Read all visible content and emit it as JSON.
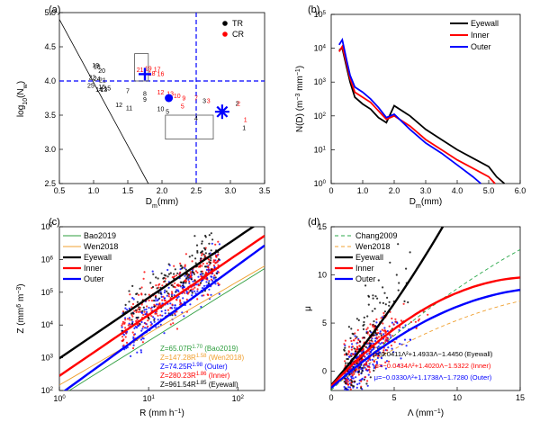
{
  "chart_data": [
    {
      "panel": "(a)",
      "type": "scatter",
      "xlabel": "D_m(mm)",
      "ylabel": "log_10(N_w)",
      "xlim": [
        0.5,
        3.5
      ],
      "ylim": [
        2.5,
        5.0
      ],
      "xticks": [
        "0.5",
        "1.0",
        "1.5",
        "2.0",
        "2.5",
        "3.0",
        "3.5"
      ],
      "yticks": [
        "2.5",
        "3.0",
        "3.5",
        "4.0",
        "4.5",
        "5.0"
      ],
      "legend": [
        {
          "name": "TR",
          "color": "#000000"
        },
        {
          "name": "CR",
          "color": "#ff0000"
        }
      ],
      "reference_lines": {
        "vertical_dashed_x": 2.5,
        "horizontal_dashed_y": 4.0,
        "diagonal_line": [
          [
            0.5,
            4.9
          ],
          [
            1.8,
            2.5
          ]
        ]
      },
      "boxes": [
        {
          "x": [
            1.6,
            1.8
          ],
          "y": [
            4.0,
            4.4
          ]
        },
        {
          "x": [
            2.05,
            2.75
          ],
          "y": [
            3.15,
            3.5
          ]
        }
      ],
      "markers": [
        {
          "shape": "plus",
          "color": "#0000ff",
          "x": 1.75,
          "y": 4.1
        },
        {
          "shape": "circle",
          "color": "#0000ff",
          "x": 2.1,
          "y": 3.75
        },
        {
          "shape": "asterisk",
          "color": "#0000ff",
          "x": 2.88,
          "y": 3.55
        }
      ],
      "tr_labels": [
        {
          "t": "19",
          "x": 1.03,
          "y": 4.2
        },
        {
          "t": "18",
          "x": 1.05,
          "y": 4.18
        },
        {
          "t": "20",
          "x": 1.12,
          "y": 4.12
        },
        {
          "t": "22",
          "x": 0.98,
          "y": 4.02
        },
        {
          "t": "24",
          "x": 1.05,
          "y": 4.0
        },
        {
          "t": "21",
          "x": 1.13,
          "y": 3.98
        },
        {
          "t": "25",
          "x": 0.96,
          "y": 3.9
        },
        {
          "t": "16",
          "x": 1.12,
          "y": 3.88
        },
        {
          "t": "15",
          "x": 1.2,
          "y": 3.86
        },
        {
          "t": "14",
          "x": 1.08,
          "y": 3.84
        },
        {
          "t": "13",
          "x": 1.15,
          "y": 3.84
        },
        {
          "t": "7",
          "x": 1.5,
          "y": 3.82
        },
        {
          "t": "8",
          "x": 1.75,
          "y": 3.78
        },
        {
          "t": "9",
          "x": 1.75,
          "y": 3.7
        },
        {
          "t": "12",
          "x": 1.37,
          "y": 3.62
        },
        {
          "t": "11",
          "x": 1.52,
          "y": 3.57
        },
        {
          "t": "10",
          "x": 1.98,
          "y": 3.56
        },
        {
          "t": "5",
          "x": 2.08,
          "y": 3.52
        },
        {
          "t": "3",
          "x": 2.62,
          "y": 3.68
        },
        {
          "t": "2",
          "x": 3.1,
          "y": 3.64
        },
        {
          "t": "4",
          "x": 2.5,
          "y": 3.42
        },
        {
          "t": "1",
          "x": 3.2,
          "y": 3.28
        }
      ],
      "cr_labels": [
        {
          "t": "21",
          "x": 1.68,
          "y": 4.13
        },
        {
          "t": "19",
          "x": 1.8,
          "y": 4.15
        },
        {
          "t": "17",
          "x": 1.93,
          "y": 4.14
        },
        {
          "t": "18",
          "x": 1.85,
          "y": 4.08
        },
        {
          "t": "16",
          "x": 1.98,
          "y": 4.07
        },
        {
          "t": "12",
          "x": 1.98,
          "y": 3.8
        },
        {
          "t": "13",
          "x": 2.12,
          "y": 3.78
        },
        {
          "t": "10",
          "x": 2.22,
          "y": 3.75
        },
        {
          "t": "9",
          "x": 2.32,
          "y": 3.72
        },
        {
          "t": "5",
          "x": 2.3,
          "y": 3.6
        },
        {
          "t": "7",
          "x": 2.5,
          "y": 3.72
        },
        {
          "t": "3",
          "x": 2.68,
          "y": 3.68
        },
        {
          "t": "2",
          "x": 3.12,
          "y": 3.64
        },
        {
          "t": "1",
          "x": 3.22,
          "y": 3.4
        }
      ]
    },
    {
      "panel": "(b)",
      "type": "line",
      "xlabel": "D_m(mm)",
      "ylabel": "N(D) (m^-3 mm^-1)",
      "xlim": [
        0,
        6
      ],
      "ylim_log10": [
        0,
        5
      ],
      "xticks": [
        "0",
        "1.0",
        "2.0",
        "3.0",
        "4.0",
        "5.0",
        "6.0"
      ],
      "series": [
        {
          "name": "Eyewall",
          "color": "#000000",
          "x": [
            0.25,
            0.35,
            0.5,
            0.6,
            0.75,
            1.0,
            1.25,
            1.5,
            1.75,
            2.0,
            2.5,
            3.0,
            3.5,
            4.0,
            4.5,
            5.0,
            5.25,
            5.5
          ],
          "y_log10": [
            3.95,
            4.0,
            3.4,
            3.0,
            2.55,
            2.35,
            2.2,
            1.95,
            1.8,
            2.3,
            2.0,
            1.6,
            1.3,
            1.0,
            0.75,
            0.5,
            0.2,
            0.0
          ]
        },
        {
          "name": "Inner",
          "color": "#ff0000",
          "x": [
            0.25,
            0.35,
            0.5,
            0.6,
            0.75,
            1.0,
            1.25,
            1.5,
            1.75,
            2.0,
            2.5,
            3.0,
            3.5,
            4.0,
            4.5,
            5.0,
            5.2
          ],
          "y_log10": [
            3.9,
            4.05,
            3.5,
            3.1,
            2.7,
            2.55,
            2.4,
            2.15,
            1.9,
            2.0,
            1.7,
            1.3,
            1.0,
            0.7,
            0.45,
            0.2,
            0.0
          ]
        },
        {
          "name": "Outer",
          "color": "#0000ff",
          "x": [
            0.25,
            0.35,
            0.5,
            0.6,
            0.75,
            1.0,
            1.25,
            1.5,
            1.75,
            2.0,
            2.5,
            3.0,
            3.5,
            4.0,
            4.5,
            4.75
          ],
          "y_log10": [
            4.1,
            4.25,
            3.6,
            3.2,
            2.85,
            2.7,
            2.5,
            2.25,
            1.95,
            2.05,
            1.6,
            1.2,
            0.9,
            0.55,
            0.2,
            0.0
          ]
        }
      ]
    },
    {
      "panel": "(c)",
      "type": "scatter",
      "xlabel": "R (mm h^-1)",
      "ylabel": "Z (mm^6 m^-3)",
      "xlim_log10": [
        0,
        2.3
      ],
      "ylim_log10": [
        2,
        7
      ],
      "xticks": [
        "10^0",
        "10^1",
        "10^2"
      ],
      "yticks": [
        "10^2",
        "10^3",
        "10^4",
        "10^5",
        "10^6",
        "10^7"
      ],
      "series": [
        {
          "name": "Bao2019",
          "color": "#2e9e3e",
          "a": 65.07,
          "b": 1.7
        },
        {
          "name": "Wen2018",
          "color": "#f0a030",
          "a": 147.28,
          "b": 1.58
        },
        {
          "name": "Eyewall",
          "color": "#000000",
          "a": 961.54,
          "b": 1.85
        },
        {
          "name": "Inner",
          "color": "#ff0000",
          "a": 280.23,
          "b": 1.86
        },
        {
          "name": "Outer",
          "color": "#0000ff",
          "a": 74.25,
          "b": 1.98
        }
      ],
      "equations": [
        {
          "text": "Z=65.07R",
          "exp": "1.70",
          "suffix": " (Bao2019)",
          "color": "#2e9e3e"
        },
        {
          "text": "Z=147.28R",
          "exp": "1.58",
          "suffix": " (Wen2018)",
          "color": "#f0a030"
        },
        {
          "text": "Z=74.25R",
          "exp": "1.98",
          "suffix": " (Outer)",
          "color": "#0000ff"
        },
        {
          "text": "Z=280.23R",
          "exp": "1.86",
          "suffix": " (Inner)",
          "color": "#ff0000"
        },
        {
          "text": "Z=961.54R",
          "exp": "1.85",
          "suffix": " (Eyewall)",
          "color": "#000000"
        }
      ]
    },
    {
      "panel": "(d)",
      "type": "scatter",
      "xlabel": "Λ (mm^-1)",
      "ylabel": "μ",
      "xlim": [
        0,
        15
      ],
      "ylim": [
        -2,
        15
      ],
      "xticks": [
        "0",
        "5",
        "10",
        "15"
      ],
      "yticks": [
        "0",
        "5",
        "10",
        "15"
      ],
      "series": [
        {
          "name": "Chang2009",
          "color": "#2aa84a",
          "dashed": true,
          "a": -0.016,
          "b": 1.213,
          "c": -1.957
        },
        {
          "name": "Wen2018",
          "color": "#f0a030",
          "dashed": true,
          "a": -0.0201,
          "b": 0.902,
          "c": -1.718
        },
        {
          "name": "Eyewall",
          "color": "#000000",
          "a": 0.0411,
          "b": 1.4933,
          "c": -1.445
        },
        {
          "name": "Inner",
          "color": "#ff0000",
          "a": -0.0434,
          "b": 1.402,
          "c": -1.5322
        },
        {
          "name": "Outer",
          "color": "#0000ff",
          "a": -0.033,
          "b": 1.1738,
          "c": -1.728
        }
      ],
      "equations": [
        {
          "text": "μ=0.0411Λ²+1.4933Λ−1.4450 (Eyewall)",
          "color": "#000000"
        },
        {
          "text": "μ=−0.0434Λ²+1.4020Λ−1.5322 (Inner)",
          "color": "#ff0000"
        },
        {
          "text": "μ=−0.0330Λ²+1.1738Λ−1.7280 (Outer)",
          "color": "#0000ff"
        }
      ]
    }
  ]
}
